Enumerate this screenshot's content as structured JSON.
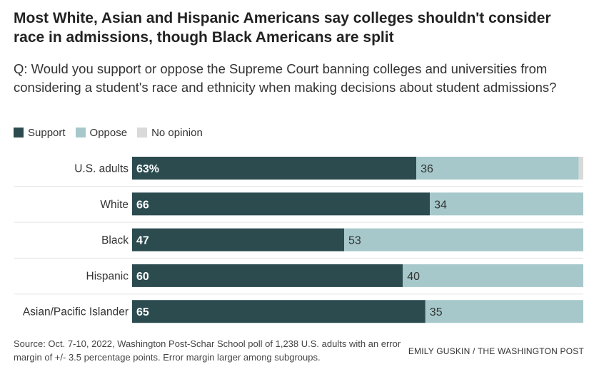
{
  "title": "Most White, Asian and Hispanic Americans say colleges shouldn't consider race in admissions, though Black Americans are split",
  "question": "Q: Would you support or oppose the Supreme Court banning colleges and universities from considering a student's race and ethnicity when making decisions about student admissions?",
  "legend": [
    {
      "label": "Support",
      "color": "#2b4b4f"
    },
    {
      "label": "Oppose",
      "color": "#a6c8cb"
    },
    {
      "label": "No opinion",
      "color": "#d9d9d9"
    }
  ],
  "chart_data": {
    "type": "bar",
    "orientation": "horizontal",
    "stacked": true,
    "categories": [
      "U.S. adults",
      "White",
      "Black",
      "Hispanic",
      "Asian/Pacific Islander"
    ],
    "series": [
      {
        "name": "Support",
        "color": "#2b4b4f",
        "values": [
          63,
          66,
          47,
          60,
          65
        ],
        "labels": [
          "63%",
          "66",
          "47",
          "60",
          "65"
        ]
      },
      {
        "name": "Oppose",
        "color": "#a6c8cb",
        "values": [
          36,
          34,
          53,
          40,
          35
        ],
        "labels": [
          "36",
          "34",
          "53",
          "40",
          "35"
        ]
      },
      {
        "name": "No opinion",
        "color": "#d9d9d9",
        "values": [
          1,
          0,
          0,
          0,
          0
        ],
        "labels": [
          "",
          "",
          "",
          "",
          ""
        ]
      }
    ],
    "xlim": [
      0,
      100
    ],
    "grid": false,
    "legend_position": "top-left"
  },
  "source": "Source: Oct. 7-10, 2022, Washington Post-Schar School poll of 1,238 U.S. adults with an error margin of +/- 3.5 percentage points. Error margin larger among subgroups.",
  "credit": "EMILY GUSKIN / THE WASHINGTON POST"
}
